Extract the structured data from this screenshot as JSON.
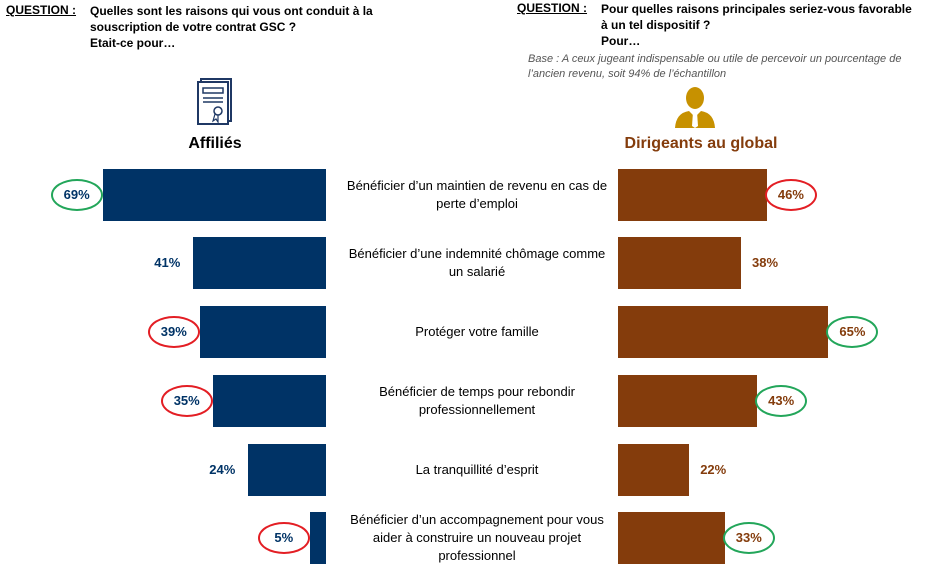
{
  "left_question": {
    "label": "QUESTION :",
    "text": "Quelles sont les raisons qui vous ont conduit à la\nsouscription de votre contrat GSC ?\nEtait-ce pour…"
  },
  "right_question": {
    "label": "QUESTION :",
    "text": "Pour quelles raisons principales seriez-vous favorable\nà un tel dispositif ?\nPour…",
    "base": "Base : A ceux jugeant indispensable ou utile de percevoir un pourcentage de l’ancien revenu, soit 94% de l’échantillon"
  },
  "icons": {
    "left": "certificate-icon",
    "right": "businessman-icon"
  },
  "colors": {
    "affilies": "#003366",
    "dirigeants": "#843C0C",
    "ring_red": "#e31e24",
    "ring_green": "#23a65a"
  },
  "chart_data": {
    "type": "bar",
    "categories": [
      "Bénéficier d’un maintien de revenu en cas de perte d’emploi",
      "Bénéficier d’une indemnité chômage comme un salarié",
      "Protéger votre famille",
      "Bénéficier de temps pour rebondir professionnellement",
      "La tranquillité d’esprit",
      "Bénéficier d’un accompagnement pour vous aider à construire un nouveau projet professionnel"
    ],
    "series": [
      {
        "name": "Affiliés",
        "values": [
          69,
          41,
          39,
          35,
          24,
          5
        ],
        "labels": [
          "69%",
          "41%",
          "39%",
          "35%",
          "24%",
          "5%"
        ],
        "highlights": [
          "green",
          "none",
          "red",
          "red",
          "none",
          "red"
        ]
      },
      {
        "name": "Dirigeants au global",
        "values": [
          46,
          38,
          65,
          43,
          22,
          33
        ],
        "labels": [
          "46%",
          "38%",
          "65%",
          "43%",
          "22%",
          "33%"
        ],
        "highlights": [
          "red",
          "none",
          "green",
          "green",
          "none",
          "green"
        ]
      }
    ],
    "ylim": [
      0,
      100
    ]
  }
}
